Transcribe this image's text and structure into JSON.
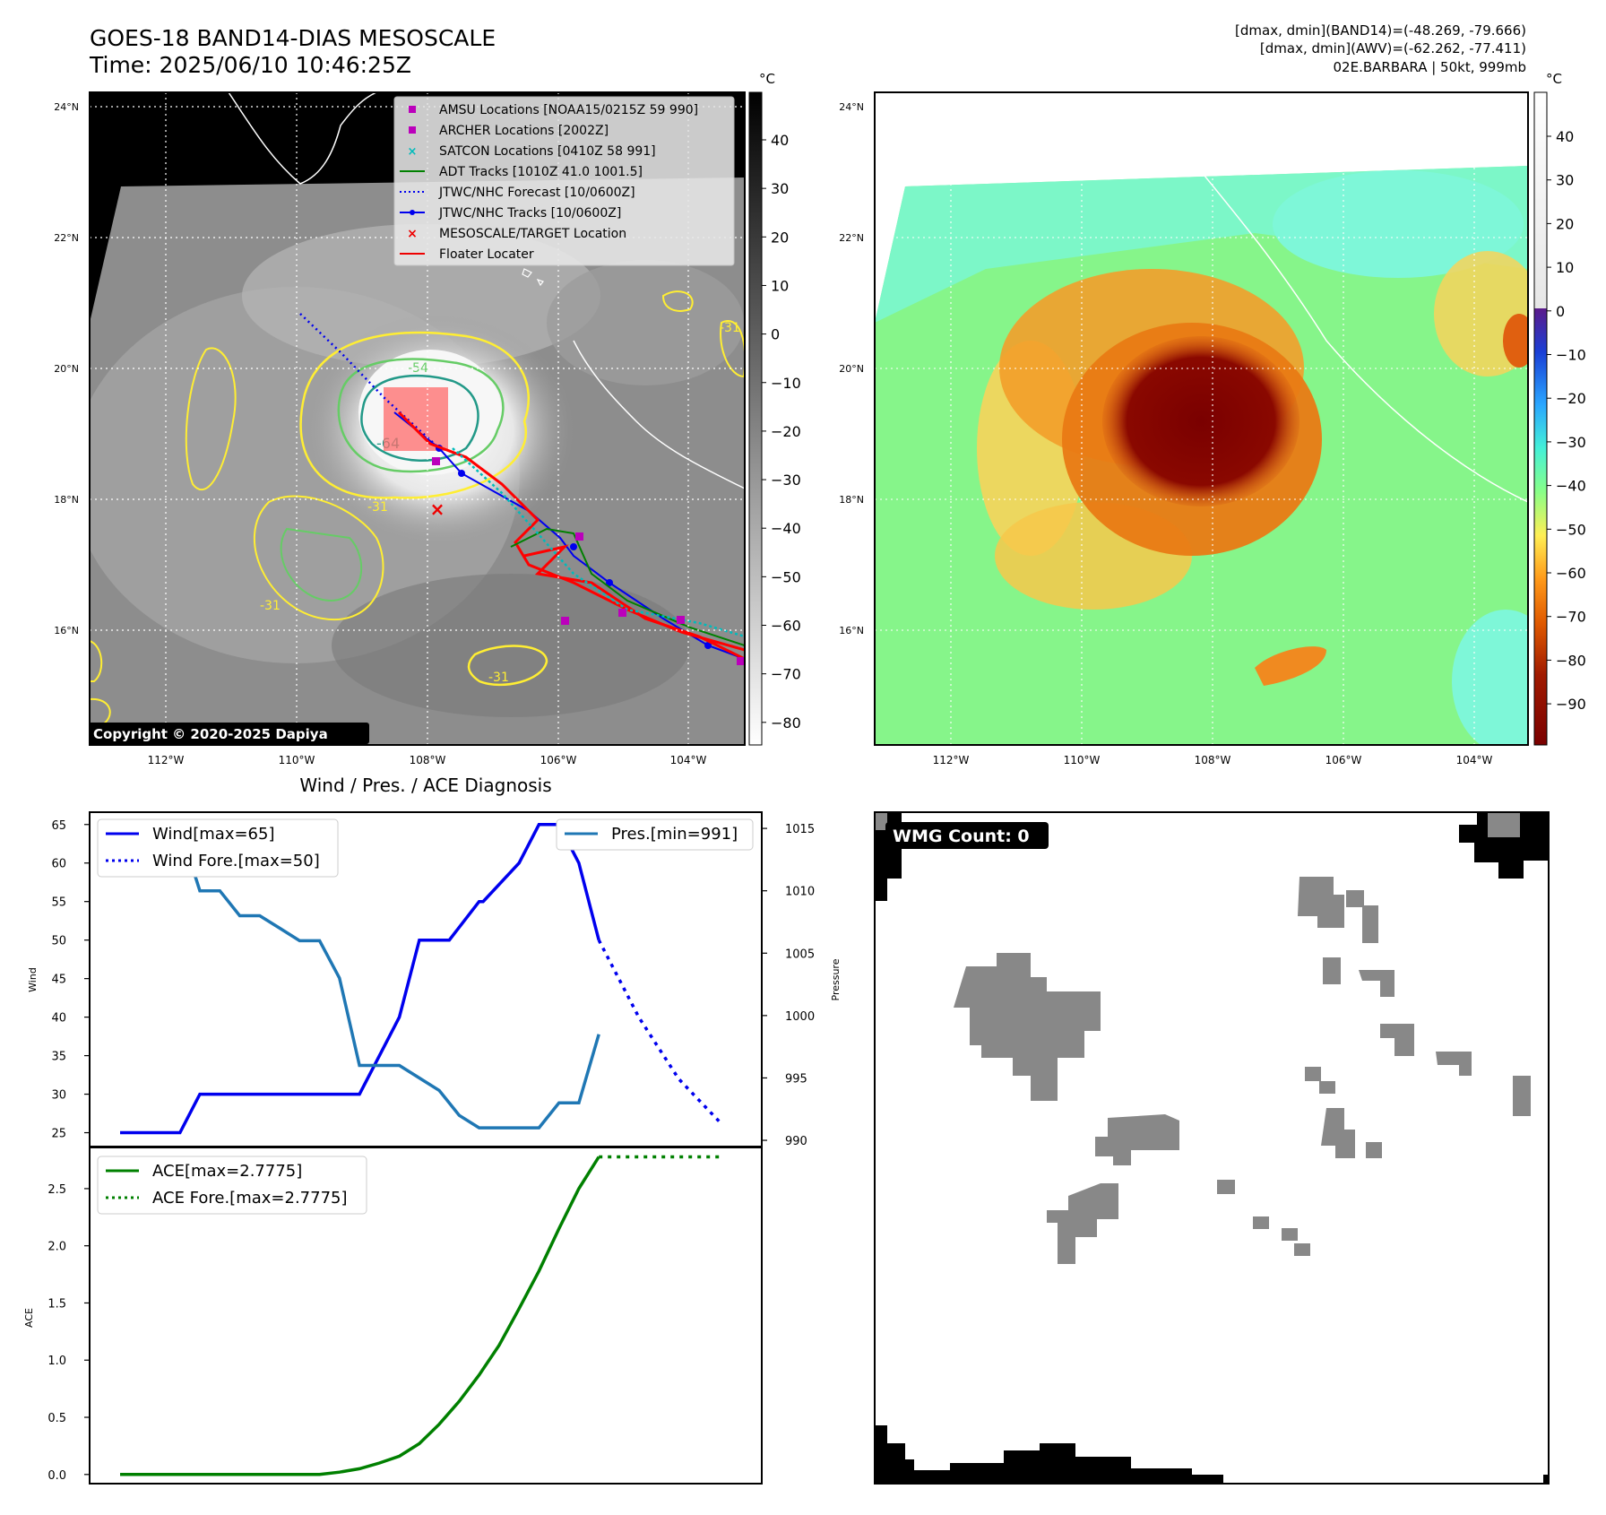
{
  "header": {
    "title_line1": "GOES-18 BAND14-DIAS MESOSCALE",
    "title_line2": "Time: 2025/06/10 10:46:25Z",
    "info_line1": "[dmax, dmin](BAND14)=(-48.269, -79.666)",
    "info_line2": "[dmax, dmin](AWV)=(-62.262, -77.411)",
    "info_line3": "02E.BARBARA | 50kt, 999mb"
  },
  "colors": {
    "wind": "#0000ee",
    "pressure": "#1f77b4",
    "ace": "#008000",
    "contour_yellow": "#ffee33",
    "contour_green": "#66cc66",
    "contour_teal": "#229988",
    "track_red": "#ff0000",
    "amsu": "#bb00bb",
    "satcon": "#00bbbb"
  },
  "copyright": "Copyright © 2020-2025 Dapiya",
  "wmg_label": "WMG Count: 0",
  "maps": {
    "lat_labels": [
      "24°N",
      "22°N",
      "20°N",
      "18°N",
      "16°N"
    ],
    "lon_labels": [
      "112°W",
      "110°W",
      "108°W",
      "106°W",
      "104°W"
    ],
    "colorbar_unit": "°C",
    "gray_ticks": [
      "40",
      "30",
      "20",
      "10",
      "0",
      "−10",
      "−20",
      "−30",
      "−40",
      "−50",
      "−60",
      "−70",
      "−80"
    ],
    "color_ticks": [
      "40",
      "30",
      "20",
      "10",
      "0",
      "−10",
      "−20",
      "−30",
      "−40",
      "−50",
      "−60",
      "−70",
      "−80",
      "−90"
    ],
    "contour_labels": [
      "-31",
      "-64",
      "-54",
      "-31",
      "-31",
      "-31"
    ],
    "legend": [
      {
        "label": "AMSU Locations [NOAA15/0215Z 59 990]",
        "marker": "square",
        "color": "#bb00bb"
      },
      {
        "label": "ARCHER Locations [2002Z]",
        "marker": "square",
        "color": "#bb00bb"
      },
      {
        "label": "SATCON Locations [0410Z 58 991]",
        "marker": "x",
        "color": "#00bbbb"
      },
      {
        "label": "ADT Tracks [1010Z 41.0 1001.5]",
        "marker": "line",
        "color": "#008000"
      },
      {
        "label": "JTWC/NHC Forecast [10/0600Z]",
        "marker": "dotted",
        "color": "#0000ee"
      },
      {
        "label": "JTWC/NHC Tracks [10/0600Z]",
        "marker": "dotline",
        "color": "#0000ee"
      },
      {
        "label": "MESOSCALE/TARGET Location",
        "marker": "x",
        "color": "#ee0000"
      },
      {
        "label": "Floater Locater",
        "marker": "line",
        "color": "#ee0000"
      }
    ]
  },
  "chart_data": [
    {
      "type": "line",
      "title": "Wind / Pres. / ACE Diagnosis",
      "ylabel": "Wind",
      "y2label": "Pressure",
      "ylim": [
        23.2,
        66.6
      ],
      "y2lim": [
        989.5,
        1016.3
      ],
      "yticks": [
        25,
        30,
        35,
        40,
        45,
        50,
        55,
        60,
        65
      ],
      "y2ticks": [
        990,
        995,
        1000,
        1005,
        1010,
        1015
      ],
      "legend_left": [
        "Wind[max=65]",
        "Wind Fore.[max=50]"
      ],
      "legend_right": [
        "Pres.[min=991]"
      ],
      "x": [
        0,
        1,
        2,
        3,
        4,
        5,
        6,
        7,
        8,
        9,
        10,
        11,
        12,
        13,
        14,
        15
      ],
      "series": [
        {
          "name": "Wind[max=65]",
          "axis": "left",
          "style": "solid",
          "values": [
            25,
            25,
            25,
            25,
            30,
            30,
            30,
            30,
            30,
            30,
            30,
            30,
            30,
            35,
            40,
            50,
            50,
            50,
            55,
            55,
            60,
            65,
            65,
            60,
            50
          ],
          "x": [
            0,
            0.5,
            1,
            1.5,
            2,
            2.5,
            3,
            3.5,
            4,
            4.5,
            5,
            5.5,
            6,
            6.5,
            7,
            7.5,
            8,
            8.25,
            9,
            9.1,
            10,
            10.5,
            11,
            11.5,
            12
          ]
        },
        {
          "name": "Wind Fore.[max=50]",
          "axis": "left",
          "style": "dotted",
          "x": [
            12,
            13,
            14,
            15.1
          ],
          "values": [
            50,
            40,
            32,
            26
          ]
        },
        {
          "name": "Pres.[min=991]",
          "axis": "right",
          "style": "solid",
          "x": [
            0,
            1,
            1.5,
            2,
            2.5,
            3,
            3.5,
            4,
            4.5,
            5,
            5.5,
            6,
            6.5,
            7,
            7.5,
            8,
            8.5,
            9,
            9.5,
            10,
            10.5,
            11,
            11.5,
            12
          ],
          "values": [
            1015,
            1015,
            1015,
            1010,
            1010,
            1008,
            1008,
            1007,
            1006,
            1006,
            1003,
            996,
            996,
            996,
            995,
            994,
            992,
            991,
            991,
            991,
            991,
            993,
            993,
            998.5
          ]
        }
      ]
    },
    {
      "type": "line",
      "ylabel": "ACE",
      "ylim": [
        -0.08,
        2.86
      ],
      "yticks": [
        0.0,
        0.5,
        1.0,
        1.5,
        2.0,
        2.5
      ],
      "legend": [
        "ACE[max=2.7775]",
        "ACE Fore.[max=2.7775]"
      ],
      "series": [
        {
          "name": "ACE[max=2.7775]",
          "style": "solid",
          "x": [
            0,
            1,
            2,
            3,
            4,
            5,
            5.5,
            6,
            6.5,
            7,
            7.5,
            8,
            8.5,
            9,
            9.5,
            10,
            10.5,
            11,
            11.5,
            12
          ],
          "values": [
            0,
            0,
            0,
            0,
            0,
            0,
            0.02,
            0.05,
            0.1,
            0.16,
            0.27,
            0.44,
            0.64,
            0.87,
            1.13,
            1.45,
            1.78,
            2.15,
            2.5,
            2.7775
          ]
        },
        {
          "name": "ACE Fore.[max=2.7775]",
          "style": "dotted",
          "x": [
            12,
            15.1
          ],
          "values": [
            2.7775,
            2.7775
          ]
        }
      ]
    }
  ]
}
